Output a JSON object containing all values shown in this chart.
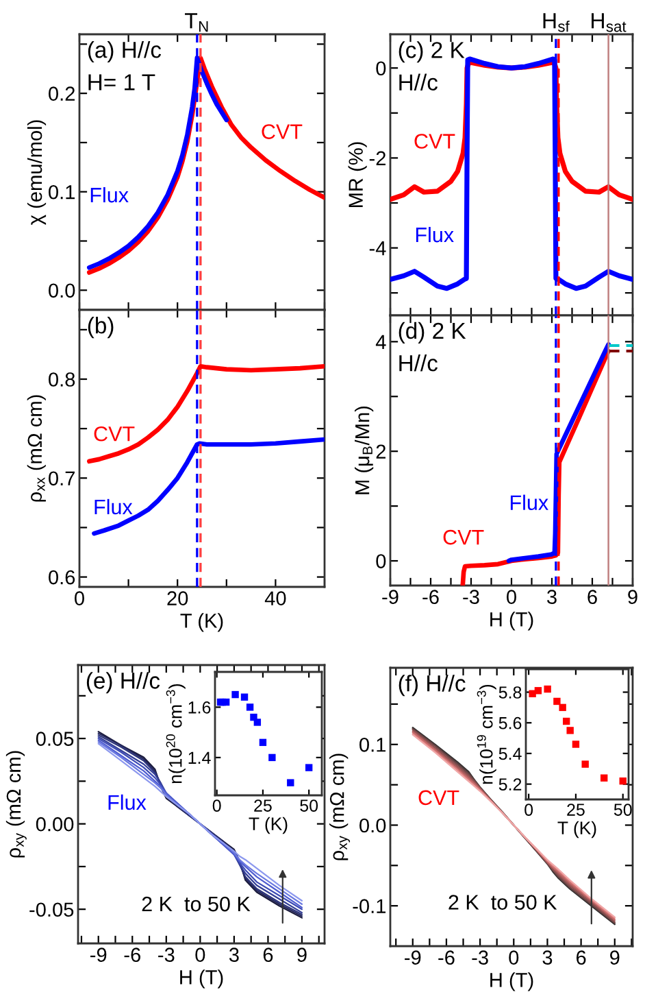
{
  "chart_data": [
    {
      "type": "line",
      "title": "(a) H//c",
      "subtitle": "H= 1 T",
      "ylabel": "χ (emu/mol)",
      "xlim": [
        0,
        50
      ],
      "ylim": [
        -0.02,
        0.26
      ],
      "xticks": [
        0,
        {
          "value": 10,
          "label": null
        },
        20,
        {
          "value": 30,
          "label": null
        },
        40,
        {
          "value": 50,
          "label": null
        }
      ],
      "yticks": [
        {
          "value": 0,
          "label": "0.0"
        },
        {
          "value": 0.05,
          "label": null
        },
        0.1,
        {
          "value": 0.15,
          "label": null
        },
        0.2,
        {
          "value": 0.25,
          "label": null
        }
      ],
      "tick_labels": "y",
      "ref_lines": [
        {
          "axis": "x",
          "value": 24.0,
          "color": "#0000ff",
          "line_style": "dashed",
          "label": "T$_{N}$"
        },
        {
          "axis": "x",
          "value": 24.7,
          "color": "#ff4040",
          "line_style": "dashed"
        }
      ],
      "series": [
        {
          "name": "CVT",
          "color": "#ff0000",
          "x": [
            2,
            4,
            6,
            8,
            10,
            12,
            14,
            16,
            18,
            20,
            21,
            22,
            23,
            24,
            24.7,
            25.5,
            27,
            29,
            31,
            33,
            35,
            38,
            41,
            44,
            47,
            50
          ],
          "values": [
            0.018,
            0.022,
            0.027,
            0.033,
            0.04,
            0.049,
            0.06,
            0.074,
            0.092,
            0.115,
            0.131,
            0.151,
            0.178,
            0.212,
            0.236,
            0.225,
            0.207,
            0.186,
            0.168,
            0.155,
            0.145,
            0.132,
            0.121,
            0.111,
            0.102,
            0.094
          ]
        },
        {
          "name": "Flux",
          "color": "#0000ff",
          "x": [
            2,
            4,
            6,
            8,
            10,
            12,
            14,
            16,
            18,
            20,
            21,
            22,
            23,
            23.5,
            24,
            24.5,
            25,
            26,
            27,
            28,
            29,
            30
          ],
          "values": [
            0.023,
            0.027,
            0.032,
            0.038,
            0.045,
            0.054,
            0.065,
            0.079,
            0.097,
            0.121,
            0.137,
            0.158,
            0.186,
            0.205,
            0.236,
            0.229,
            0.222,
            0.21,
            0.199,
            0.189,
            0.181,
            0.173
          ]
        }
      ]
    },
    {
      "type": "line",
      "title": "(b)",
      "xlabel": "T (K)",
      "ylabel": "ρ$_{xx}$ (mΩ cm)",
      "xlim": [
        0,
        50
      ],
      "ylim": [
        0.59,
        0.87
      ],
      "xticks": [
        0,
        {
          "value": 10,
          "label": null
        },
        20,
        {
          "value": 30,
          "label": null
        },
        40,
        {
          "value": 50,
          "label": null
        }
      ],
      "yticks": [
        0.6,
        {
          "value": 0.65,
          "label": null
        },
        0.7,
        {
          "value": 0.75,
          "label": null
        },
        0.8,
        {
          "value": 0.85,
          "label": null
        }
      ],
      "ref_lines": [
        {
          "axis": "x",
          "value": 24.0,
          "color": "#0000ff",
          "line_style": "dashed"
        },
        {
          "axis": "x",
          "value": 24.7,
          "color": "#ff4040",
          "line_style": "dashed"
        }
      ],
      "series": [
        {
          "name": "CVT",
          "color": "#ff0000",
          "x": [
            2,
            4,
            6,
            8,
            10,
            12,
            14,
            16,
            18,
            20,
            22,
            23,
            24,
            24.7,
            26,
            28,
            30,
            35,
            40,
            45,
            50
          ],
          "values": [
            0.717,
            0.719,
            0.722,
            0.725,
            0.729,
            0.734,
            0.741,
            0.749,
            0.759,
            0.772,
            0.788,
            0.797,
            0.806,
            0.813,
            0.812,
            0.811,
            0.81,
            0.809,
            0.81,
            0.811,
            0.813
          ]
        },
        {
          "name": "Flux",
          "color": "#0000ff",
          "x": [
            3,
            5,
            8,
            10,
            12,
            14,
            16,
            18,
            20,
            21,
            22,
            23,
            24,
            24.5,
            26,
            28,
            30,
            35,
            40,
            45,
            50
          ],
          "values": [
            0.644,
            0.647,
            0.652,
            0.657,
            0.662,
            0.668,
            0.677,
            0.688,
            0.7,
            0.708,
            0.716,
            0.725,
            0.734,
            0.735,
            0.734,
            0.734,
            0.734,
            0.734,
            0.735,
            0.737,
            0.739
          ]
        }
      ]
    },
    {
      "type": "line",
      "title": "(c) 2 K",
      "subtitle": "H//c",
      "ylabel": "MR (%)",
      "xlim": [
        -9,
        9
      ],
      "ylim": [
        -5.5,
        0.75
      ],
      "xticks": [
        -9,
        {
          "value": -7.5,
          "label": null
        },
        -6,
        {
          "value": -4.5,
          "label": null
        },
        -3,
        {
          "value": -1.5,
          "label": null
        },
        0,
        {
          "value": 1.5,
          "label": null
        },
        3,
        {
          "value": 4.5,
          "label": null
        },
        6,
        {
          "value": 7.5,
          "label": null
        },
        9
      ],
      "yticks": [
        {
          "value": -5,
          "label": null
        },
        -4,
        {
          "value": -3,
          "label": null
        },
        -2,
        {
          "value": -1,
          "label": null
        },
        0
      ],
      "tick_labels": "y",
      "ref_lines": [
        {
          "axis": "x",
          "value": 3.3,
          "color": "#0000ff",
          "line_style": "dashed",
          "label": "H$_{sf}$"
        },
        {
          "axis": "x",
          "value": 3.5,
          "color": "#ff0000",
          "line_style": "dashed"
        },
        {
          "axis": "x",
          "value": 7.2,
          "color": "#c08080",
          "label": "H$_{sat}$"
        }
      ],
      "series": [
        {
          "name": "CVT",
          "color": "#ff0000",
          "x": [
            -9,
            -8,
            -7.2,
            -6.5,
            -5.5,
            -4.5,
            -4,
            -3.6,
            -3.45,
            -3.35,
            -3.3,
            -3.2,
            -3,
            -2,
            -1,
            0,
            1,
            2,
            3,
            3.2,
            3.3,
            3.35,
            3.45,
            3.6,
            4,
            4.5,
            5.5,
            6.5,
            7.2,
            8,
            9
          ],
          "values": [
            -2.92,
            -2.82,
            -2.64,
            -2.76,
            -2.74,
            -2.52,
            -2.3,
            -1.9,
            -1.55,
            -0.8,
            0.0,
            0.1,
            0.12,
            0.06,
            0.02,
            0.0,
            0.02,
            0.06,
            0.12,
            0.1,
            0.0,
            -0.8,
            -1.55,
            -1.9,
            -2.3,
            -2.52,
            -2.74,
            -2.76,
            -2.64,
            -2.82,
            -2.92
          ]
        },
        {
          "name": "Flux",
          "color": "#0000ff",
          "x": [
            -9,
            -8,
            -7.2,
            -6.5,
            -5.5,
            -4.8,
            -4,
            -3.5,
            -3.35,
            -3.3,
            -3.25,
            -3.1,
            -2,
            -1,
            0,
            1,
            2,
            3.1,
            3.2,
            3.25,
            3.3,
            3.5,
            4,
            4.8,
            5.5,
            6.5,
            7.2,
            8,
            9
          ],
          "values": [
            -4.7,
            -4.62,
            -4.52,
            -4.65,
            -4.85,
            -4.9,
            -4.8,
            -4.7,
            -4.68,
            -2.0,
            0.18,
            0.2,
            0.1,
            0.03,
            0.0,
            0.03,
            0.1,
            0.2,
            0.18,
            -2.0,
            -4.68,
            -4.7,
            -4.8,
            -4.9,
            -4.85,
            -4.65,
            -4.52,
            -4.62,
            -4.7
          ]
        }
      ]
    },
    {
      "type": "line",
      "title": "(d) 2 K",
      "subtitle": "H//c",
      "xlabel": "H (T)",
      "ylabel": "M (μ$_{B}$/Mn)",
      "xlim": [
        -9,
        9
      ],
      "ylim": [
        -0.45,
        4.48
      ],
      "xticks": [
        -9,
        {
          "value": -7.5,
          "label": null
        },
        -6,
        {
          "value": -4.5,
          "label": null
        },
        -3,
        {
          "value": -1.5,
          "label": null
        },
        0,
        {
          "value": 1.5,
          "label": null
        },
        3,
        {
          "value": 4.5,
          "label": null
        },
        6,
        {
          "value": 7.5,
          "label": null
        },
        9
      ],
      "yticks": [
        0,
        {
          "value": 1,
          "label": null
        },
        2,
        {
          "value": 3,
          "label": null
        },
        4
      ],
      "ref_lines": [
        {
          "axis": "x",
          "value": 3.3,
          "color": "#0000ff",
          "line_style": "dashed"
        },
        {
          "axis": "x",
          "value": 3.5,
          "color": "#ff0000",
          "line_style": "dashed"
        },
        {
          "axis": "x",
          "value": 7.2,
          "color": "#c08080"
        }
      ],
      "series": [
        {
          "name": "CVT",
          "color": "#ff0000",
          "x": [
            -3.62,
            -3.55,
            -3.45,
            -3,
            -2,
            -1,
            0,
            1,
            2,
            3,
            3.3,
            3.45,
            3.5,
            3.55,
            4,
            5,
            6,
            7,
            7.2
          ],
          "values": [
            -0.44,
            -0.2,
            -0.1,
            -0.09,
            -0.08,
            -0.06,
            0.0,
            0.03,
            0.05,
            0.08,
            0.1,
            0.15,
            1.2,
            1.8,
            2.05,
            2.6,
            3.16,
            3.72,
            3.83
          ]
        },
        {
          "name": "Flux",
          "color": "#0000ff",
          "x": [
            -0.2,
            0,
            1,
            2,
            3,
            3.2,
            3.25,
            3.3,
            3.35,
            4,
            5,
            6,
            7,
            7.2
          ],
          "values": [
            0.0,
            0.02,
            0.05,
            0.08,
            0.12,
            0.15,
            0.5,
            1.2,
            1.95,
            2.29,
            2.81,
            3.33,
            3.85,
            3.95
          ]
        },
        {
          "color": "#800000",
          "line_style": "dashed",
          "x": [
            7.2,
            9
          ],
          "values": [
            3.83,
            3.83
          ]
        },
        {
          "color": "#00c8c8",
          "line_style": "dashed",
          "x": [
            7.2,
            9
          ],
          "values": [
            3.93,
            3.93
          ]
        }
      ]
    },
    {
      "type": "line",
      "title": "(e) H//c",
      "xlabel": "H (T)",
      "ylabel": "ρ$_{xy}$ (mΩ cm)",
      "xlim": [
        -10.8,
        11
      ],
      "ylim": [
        -0.07,
        0.093
      ],
      "xticks": [
        {
          "value": -10.5,
          "label": null
        },
        -9,
        {
          "value": -7.5,
          "label": null
        },
        -6,
        {
          "value": -4.5,
          "label": null
        },
        -3,
        {
          "value": -1.5,
          "label": null
        },
        0,
        {
          "value": 1.5,
          "label": null
        },
        3,
        {
          "value": 4.5,
          "label": null
        },
        6,
        {
          "value": 7.5,
          "label": null
        },
        9,
        {
          "value": 10.5,
          "label": null
        }
      ],
      "yticks": [
        -0.05,
        {
          "value": -0.025,
          "label": null
        },
        {
          "value": 0,
          "label": "0.00"
        },
        {
          "value": 0.025,
          "label": null
        },
        0.05,
        {
          "value": 0.075,
          "label": null
        }
      ],
      "annotations": [
        "Flux",
        "2 K  to 50 K"
      ],
      "x": [
        -9,
        -7,
        -5,
        -4,
        -3.5,
        -3,
        -2,
        -1,
        0,
        1,
        2,
        3,
        3.5,
        4,
        5,
        7,
        9
      ],
      "series": [
        {
          "color": "#1a1a3a",
          "values": [
            0.054,
            0.046,
            0.039,
            0.032,
            0.022,
            0.015,
            0.01,
            0.005,
            0,
            -0.005,
            -0.01,
            -0.015,
            -0.022,
            -0.033,
            -0.04,
            -0.048,
            -0.055
          ]
        },
        {
          "color": "#23265a",
          "values": [
            0.053,
            0.046,
            0.038,
            0.031,
            0.023,
            0.016,
            0.01,
            0.005,
            0,
            -0.005,
            -0.01,
            -0.016,
            -0.023,
            -0.032,
            -0.039,
            -0.047,
            -0.054
          ]
        },
        {
          "color": "#2b3278",
          "values": [
            0.052,
            0.045,
            0.037,
            0.03,
            0.024,
            0.017,
            0.011,
            0.005,
            0,
            -0.005,
            -0.011,
            -0.017,
            -0.024,
            -0.031,
            -0.038,
            -0.046,
            -0.053
          ]
        },
        {
          "color": "#333e96",
          "values": [
            0.051,
            0.043,
            0.035,
            0.029,
            0.024,
            0.018,
            0.011,
            0.006,
            0,
            -0.006,
            -0.011,
            -0.018,
            -0.024,
            -0.029,
            -0.036,
            -0.044,
            -0.052
          ]
        },
        {
          "color": "#3c4ab4",
          "values": [
            0.05,
            0.042,
            0.033,
            0.027,
            0.023,
            0.018,
            0.012,
            0.006,
            0,
            -0.006,
            -0.012,
            -0.018,
            -0.023,
            -0.027,
            -0.034,
            -0.042,
            -0.05
          ]
        },
        {
          "color": "#4e5cd0",
          "values": [
            0.049,
            0.04,
            0.031,
            0.025,
            0.022,
            0.018,
            0.012,
            0.006,
            0,
            -0.006,
            -0.012,
            -0.018,
            -0.022,
            -0.025,
            -0.031,
            -0.04,
            -0.049
          ]
        },
        {
          "color": "#6a78e0",
          "values": [
            0.048,
            0.039,
            0.029,
            0.024,
            0.021,
            0.017,
            0.011,
            0.006,
            0,
            -0.006,
            -0.011,
            -0.017,
            -0.021,
            -0.024,
            -0.029,
            -0.038,
            -0.047
          ]
        },
        {
          "color": "#8c98ee",
          "values": [
            0.047,
            0.037,
            0.027,
            0.022,
            0.019,
            0.016,
            0.011,
            0.006,
            0,
            -0.006,
            -0.011,
            -0.016,
            -0.019,
            -0.021,
            -0.026,
            -0.036,
            -0.045
          ]
        }
      ]
    },
    {
      "type": "scatter",
      "xlabel": "T (K)",
      "ylabel": "n(10$^{20}$ cm$^{−3}$)",
      "marker": "square",
      "xlim": [
        -1,
        57
      ],
      "ylim": [
        1.25,
        1.74
      ],
      "xticks": [
        0,
        25,
        50
      ],
      "yticks": [
        1.4,
        1.6
      ],
      "x": [
        2,
        3,
        5,
        10,
        15,
        18,
        20,
        22,
        25,
        30,
        40,
        50
      ],
      "series": [
        {
          "color": "#0000ff",
          "values": [
            1.62,
            1.62,
            1.62,
            1.65,
            1.64,
            1.6,
            1.56,
            1.54,
            1.46,
            1.4,
            1.3,
            1.36
          ]
        }
      ]
    },
    {
      "type": "line",
      "title": "(f) H//c",
      "xlabel": "H (T)",
      "ylabel": "ρ$_{xy}$ (mΩ cm)",
      "xlim": [
        -11,
        10.6
      ],
      "ylim": [
        -0.15,
        0.195
      ],
      "xticks": [
        {
          "value": -10.5,
          "label": null
        },
        -9,
        {
          "value": -7.5,
          "label": null
        },
        -6,
        {
          "value": -4.5,
          "label": null
        },
        -3,
        {
          "value": -1.5,
          "label": null
        },
        0,
        {
          "value": 1.5,
          "label": null
        },
        3,
        {
          "value": 4.5,
          "label": null
        },
        6,
        {
          "value": 7.5,
          "label": null
        },
        9,
        {
          "value": 10.5,
          "label": null
        }
      ],
      "yticks": [
        -0.1,
        {
          "value": -0.05,
          "label": null
        },
        {
          "value": 0,
          "label": "0.0"
        },
        {
          "value": 0.05,
          "label": null
        },
        0.1,
        {
          "value": 0.15,
          "label": null
        }
      ],
      "annotations": [
        "CVT",
        "2 K  to 50 K"
      ],
      "x": [
        -9,
        -7,
        -5,
        -4,
        -3.5,
        -3,
        -2,
        -1,
        0,
        1,
        2,
        3,
        3.5,
        4,
        5,
        7,
        9
      ],
      "series": [
        {
          "color": "#2a2a2a",
          "values": [
            0.121,
            0.1,
            0.078,
            0.066,
            0.056,
            0.047,
            0.031,
            0.016,
            0,
            -0.016,
            -0.032,
            -0.048,
            -0.058,
            -0.066,
            -0.079,
            -0.101,
            -0.123
          ]
        },
        {
          "color": "#4a3a3a",
          "values": [
            0.12,
            0.099,
            0.077,
            0.065,
            0.056,
            0.047,
            0.031,
            0.016,
            0,
            -0.016,
            -0.032,
            -0.048,
            -0.057,
            -0.065,
            -0.078,
            -0.1,
            -0.122
          ]
        },
        {
          "color": "#6a4444",
          "values": [
            0.119,
            0.098,
            0.075,
            0.063,
            0.055,
            0.046,
            0.031,
            0.016,
            0,
            -0.016,
            -0.031,
            -0.047,
            -0.056,
            -0.064,
            -0.077,
            -0.099,
            -0.121
          ]
        },
        {
          "color": "#8a4e4e",
          "values": [
            0.118,
            0.096,
            0.073,
            0.061,
            0.054,
            0.046,
            0.03,
            0.015,
            0,
            -0.015,
            -0.031,
            -0.047,
            -0.055,
            -0.062,
            -0.075,
            -0.097,
            -0.12
          ]
        },
        {
          "color": "#a85a5a",
          "values": [
            0.116,
            0.094,
            0.071,
            0.059,
            0.052,
            0.045,
            0.03,
            0.015,
            0,
            -0.015,
            -0.03,
            -0.046,
            -0.053,
            -0.06,
            -0.073,
            -0.095,
            -0.118
          ]
        },
        {
          "color": "#c86a6a",
          "values": [
            0.115,
            0.093,
            0.069,
            0.057,
            0.051,
            0.044,
            0.03,
            0.015,
            0,
            -0.015,
            -0.03,
            -0.045,
            -0.052,
            -0.058,
            -0.071,
            -0.094,
            -0.117
          ]
        },
        {
          "color": "#e08080",
          "values": [
            0.113,
            0.091,
            0.068,
            0.055,
            0.049,
            0.043,
            0.029,
            0.015,
            0,
            -0.015,
            -0.029,
            -0.044,
            -0.05,
            -0.056,
            -0.069,
            -0.093,
            -0.115
          ]
        },
        {
          "color": "#f0a8a8",
          "values": [
            0.112,
            0.09,
            0.066,
            0.054,
            0.048,
            0.042,
            0.029,
            0.015,
            0,
            -0.015,
            -0.029,
            -0.043,
            -0.049,
            -0.055,
            -0.068,
            -0.092,
            -0.114
          ]
        }
      ]
    },
    {
      "type": "scatter",
      "xlabel": "T (K)",
      "ylabel": "n(10$^{19}$ cm$^{−3}$)",
      "marker": "square",
      "xlim": [
        -1.5,
        53
      ],
      "ylim": [
        5.1,
        5.95
      ],
      "xticks": [
        0,
        25,
        50
      ],
      "yticks": [
        5.2,
        5.4,
        5.6,
        5.8
      ],
      "x": [
        2,
        5,
        10,
        15,
        18,
        20,
        22,
        25,
        30,
        40,
        50
      ],
      "series": [
        {
          "color": "#ff0000",
          "values": [
            5.79,
            5.81,
            5.82,
            5.74,
            5.7,
            5.61,
            5.55,
            5.46,
            5.33,
            5.24,
            5.22
          ]
        }
      ]
    }
  ]
}
